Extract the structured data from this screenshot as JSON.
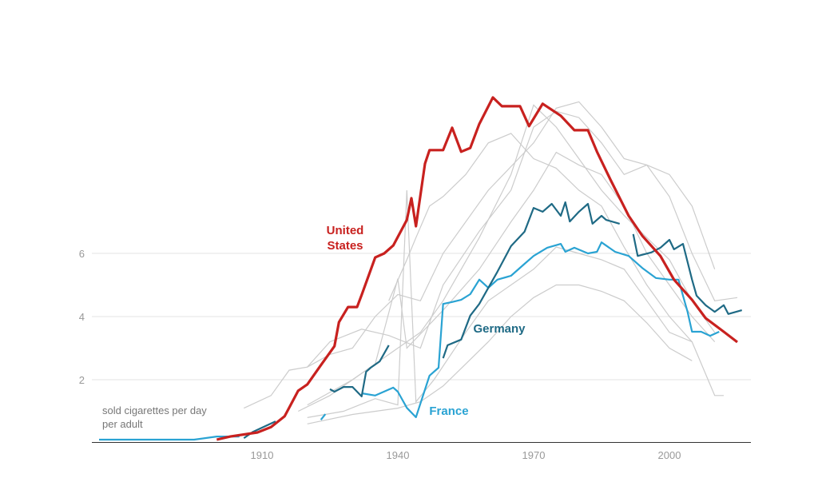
{
  "chart_data": {
    "type": "line",
    "title": "",
    "xlabel": "",
    "ylabel": "",
    "annotation": [
      "sold cigarettes per day",
      "per adult"
    ],
    "xlim": [
      1870,
      2018
    ],
    "ylim": [
      0,
      11.5
    ],
    "x_ticks": [
      1910,
      1940,
      1970,
      2000
    ],
    "y_ticks": [
      2,
      4,
      6
    ],
    "grid": "horizontal",
    "colors": {
      "us": "#c8211f",
      "germany": "#1f6a85",
      "france": "#2aa3d3",
      "other": "#cccccc"
    },
    "highlighted": [
      {
        "name": "United States",
        "color": "#c8211f",
        "segments": [
          [
            [
              1900,
              0.1
            ],
            [
              1903,
              0.2
            ],
            [
              1909,
              0.33
            ],
            [
              1912,
              0.5
            ],
            [
              1915,
              0.84
            ],
            [
              1918,
              1.65
            ],
            [
              1920,
              1.85
            ],
            [
              1923,
              2.46
            ],
            [
              1926,
              3.06
            ],
            [
              1927,
              3.82
            ],
            [
              1929,
              4.3
            ],
            [
              1931,
              4.3
            ],
            [
              1932,
              4.68
            ],
            [
              1935,
              5.87
            ],
            [
              1937,
              6.0
            ],
            [
              1939,
              6.25
            ],
            [
              1942,
              7.06
            ],
            [
              1943,
              7.75
            ],
            [
              1944,
              6.86
            ],
            [
              1946,
              8.84
            ],
            [
              1947,
              9.27
            ],
            [
              1950,
              9.27
            ],
            [
              1952,
              9.98
            ],
            [
              1954,
              9.22
            ],
            [
              1956,
              9.34
            ],
            [
              1958,
              10.1
            ],
            [
              1961,
              10.94
            ],
            [
              1963,
              10.66
            ],
            [
              1967,
              10.66
            ],
            [
              1969,
              10.03
            ],
            [
              1972,
              10.74
            ],
            [
              1976,
              10.36
            ],
            [
              1979,
              9.9
            ],
            [
              1982,
              9.9
            ],
            [
              1984,
              9.22
            ],
            [
              1987,
              8.33
            ],
            [
              1991,
              7.19
            ],
            [
              1994,
              6.56
            ],
            [
              1998,
              5.92
            ],
            [
              2001,
              5.17
            ],
            [
              2005,
              4.53
            ],
            [
              2008,
              3.95
            ],
            [
              2012,
              3.52
            ],
            [
              2015,
              3.19
            ]
          ]
        ]
      },
      {
        "name": "Germany",
        "color": "#1f6a85",
        "segments": [
          [
            [
              1906,
              0.15
            ],
            [
              1908,
              0.35
            ],
            [
              1910,
              0.48
            ],
            [
              1913,
              0.68
            ]
          ],
          [
            [
              1925,
              1.7
            ],
            [
              1926,
              1.62
            ],
            [
              1928,
              1.77
            ],
            [
              1930,
              1.77
            ],
            [
              1932,
              1.47
            ],
            [
              1933,
              2.25
            ],
            [
              1934,
              2.38
            ],
            [
              1936,
              2.58
            ],
            [
              1938,
              3.09
            ]
          ],
          [
            [
              1950,
              2.68
            ],
            [
              1951,
              3.09
            ],
            [
              1954,
              3.27
            ],
            [
              1956,
              4.03
            ],
            [
              1958,
              4.4
            ],
            [
              1960,
              4.91
            ],
            [
              1962,
              5.42
            ],
            [
              1965,
              6.23
            ],
            [
              1968,
              6.69
            ],
            [
              1970,
              7.44
            ],
            [
              1972,
              7.32
            ],
            [
              1974,
              7.57
            ],
            [
              1976,
              7.19
            ],
            [
              1977,
              7.62
            ],
            [
              1978,
              7.01
            ],
            [
              1980,
              7.32
            ],
            [
              1982,
              7.57
            ],
            [
              1983,
              6.94
            ],
            [
              1985,
              7.19
            ],
            [
              1986,
              7.06
            ],
            [
              1989,
              6.94
            ]
          ],
          [
            [
              1992,
              6.61
            ],
            [
              1993,
              5.92
            ],
            [
              1996,
              6.03
            ],
            [
              1998,
              6.18
            ],
            [
              2000,
              6.43
            ],
            [
              2001,
              6.13
            ],
            [
              2003,
              6.3
            ],
            [
              2005,
              5.17
            ],
            [
              2006,
              4.66
            ],
            [
              2008,
              4.36
            ],
            [
              2010,
              4.15
            ],
            [
              2012,
              4.36
            ],
            [
              2013,
              4.08
            ],
            [
              2016,
              4.2
            ]
          ]
        ]
      },
      {
        "name": "France",
        "color": "#2aa3d3",
        "segments": [
          [
            [
              1874,
              0.1
            ],
            [
              1895,
              0.1
            ],
            [
              1900,
              0.2
            ],
            [
              1905,
              0.2
            ]
          ],
          [
            [
              1923,
              0.73
            ],
            [
              1924,
              0.91
            ]
          ],
          [
            [
              1932,
              1.57
            ],
            [
              1935,
              1.5
            ],
            [
              1939,
              1.75
            ],
            [
              1940,
              1.62
            ],
            [
              1942,
              1.11
            ],
            [
              1944,
              0.81
            ],
            [
              1947,
              2.13
            ],
            [
              1949,
              2.38
            ],
            [
              1950,
              4.4
            ],
            [
              1952,
              4.46
            ],
            [
              1954,
              4.53
            ],
            [
              1956,
              4.71
            ],
            [
              1958,
              5.17
            ],
            [
              1960,
              4.91
            ],
            [
              1962,
              5.17
            ],
            [
              1965,
              5.29
            ],
            [
              1968,
              5.67
            ],
            [
              1970,
              5.92
            ],
            [
              1973,
              6.18
            ],
            [
              1976,
              6.3
            ],
            [
              1977,
              6.05
            ],
            [
              1979,
              6.18
            ],
            [
              1982,
              6.0
            ],
            [
              1984,
              6.05
            ],
            [
              1985,
              6.35
            ],
            [
              1988,
              6.05
            ],
            [
              1991,
              5.92
            ],
            [
              1994,
              5.54
            ],
            [
              1997,
              5.22
            ],
            [
              2000,
              5.17
            ],
            [
              2002,
              5.17
            ],
            [
              2004,
              4.15
            ],
            [
              2005,
              3.52
            ],
            [
              2007,
              3.52
            ],
            [
              2009,
              3.39
            ],
            [
              2011,
              3.52
            ]
          ]
        ]
      }
    ],
    "other_series": [
      [
        [
          1906,
          1.1
        ],
        [
          1912,
          1.5
        ],
        [
          1916,
          2.3
        ],
        [
          1920,
          2.4
        ],
        [
          1925,
          3.2
        ],
        [
          1932,
          3.6
        ],
        [
          1938,
          3.4
        ],
        [
          1945,
          3.0
        ],
        [
          1950,
          5.0
        ],
        [
          1958,
          6.7
        ],
        [
          1965,
          8.0
        ],
        [
          1970,
          10.0
        ],
        [
          1975,
          10.5
        ],
        [
          1980,
          10.3
        ],
        [
          1985,
          9.5
        ],
        [
          1990,
          8.5
        ],
        [
          1995,
          8.8
        ],
        [
          2000,
          8.5
        ],
        [
          2005,
          7.5
        ],
        [
          2010,
          5.5
        ]
      ],
      [
        [
          1918,
          1.0
        ],
        [
          1925,
          1.5
        ],
        [
          1935,
          2.5
        ],
        [
          1940,
          3.0
        ],
        [
          1945,
          3.5
        ],
        [
          1950,
          4.5
        ],
        [
          1958,
          6.5
        ],
        [
          1965,
          8.5
        ],
        [
          1970,
          10.7
        ],
        [
          1975,
          10.0
        ],
        [
          1980,
          9.0
        ],
        [
          1985,
          8.0
        ],
        [
          1990,
          7.2
        ],
        [
          1995,
          6.5
        ],
        [
          2000,
          5.8
        ],
        [
          2005,
          4.5
        ],
        [
          2010,
          3.5
        ]
      ],
      [
        [
          1920,
          2.4
        ],
        [
          1925,
          2.8
        ],
        [
          1930,
          3.0
        ],
        [
          1935,
          4.0
        ],
        [
          1940,
          4.7
        ],
        [
          1945,
          4.5
        ],
        [
          1950,
          6.0
        ],
        [
          1960,
          8.0
        ],
        [
          1970,
          9.5
        ],
        [
          1975,
          10.6
        ],
        [
          1980,
          10.8
        ],
        [
          1985,
          10.0
        ],
        [
          1990,
          9.0
        ],
        [
          1995,
          8.8
        ],
        [
          2000,
          7.8
        ],
        [
          2005,
          6.0
        ],
        [
          2010,
          4.5
        ],
        [
          2015,
          4.6
        ]
      ],
      [
        [
          1920,
          0.8
        ],
        [
          1928,
          1.0
        ],
        [
          1935,
          1.4
        ],
        [
          1940,
          1.2
        ],
        [
          1942,
          8.0
        ],
        [
          1944,
          1.3
        ],
        [
          1948,
          2.0
        ],
        [
          1955,
          3.5
        ],
        [
          1960,
          4.5
        ],
        [
          1965,
          5.0
        ],
        [
          1970,
          5.5
        ],
        [
          1975,
          6.2
        ],
        [
          1980,
          6.0
        ],
        [
          1985,
          5.8
        ],
        [
          1990,
          5.5
        ],
        [
          1995,
          4.5
        ],
        [
          2000,
          3.5
        ],
        [
          2005,
          3.2
        ],
        [
          2010,
          1.5
        ],
        [
          2012,
          1.5
        ]
      ],
      [
        [
          1920,
          0.6
        ],
        [
          1930,
          0.9
        ],
        [
          1940,
          1.1
        ],
        [
          1945,
          1.3
        ],
        [
          1950,
          1.8
        ],
        [
          1955,
          2.5
        ],
        [
          1960,
          3.2
        ],
        [
          1965,
          4.0
        ],
        [
          1970,
          4.6
        ],
        [
          1975,
          5.0
        ],
        [
          1980,
          5.0
        ],
        [
          1985,
          4.8
        ],
        [
          1990,
          4.5
        ],
        [
          1995,
          3.8
        ],
        [
          2000,
          3.0
        ],
        [
          2005,
          2.6
        ]
      ],
      [
        [
          1920,
          1.2
        ],
        [
          1930,
          2.0
        ],
        [
          1935,
          2.5
        ],
        [
          1940,
          5.2
        ],
        [
          1942,
          3.0
        ],
        [
          1950,
          4.2
        ],
        [
          1958,
          5.5
        ],
        [
          1965,
          7.0
        ],
        [
          1970,
          8.0
        ],
        [
          1975,
          9.2
        ],
        [
          1980,
          8.8
        ],
        [
          1985,
          8.5
        ],
        [
          1990,
          7.5
        ],
        [
          1995,
          6.0
        ],
        [
          2000,
          5.0
        ],
        [
          2005,
          4.0
        ],
        [
          2010,
          3.2
        ]
      ],
      [
        [
          1938,
          4.5
        ],
        [
          1942,
          5.8
        ],
        [
          1944,
          6.5
        ],
        [
          1947,
          7.5
        ],
        [
          1950,
          7.8
        ],
        [
          1955,
          8.5
        ],
        [
          1960,
          9.5
        ],
        [
          1965,
          9.8
        ],
        [
          1970,
          9.0
        ],
        [
          1975,
          8.7
        ],
        [
          1980,
          8.0
        ],
        [
          1985,
          7.5
        ],
        [
          1990,
          6.2
        ],
        [
          1995,
          5.0
        ],
        [
          2000,
          4.0
        ],
        [
          2005,
          3.2
        ]
      ]
    ],
    "labels": {
      "us": [
        "United",
        "States"
      ],
      "germany": "Germany",
      "france": "France"
    }
  }
}
